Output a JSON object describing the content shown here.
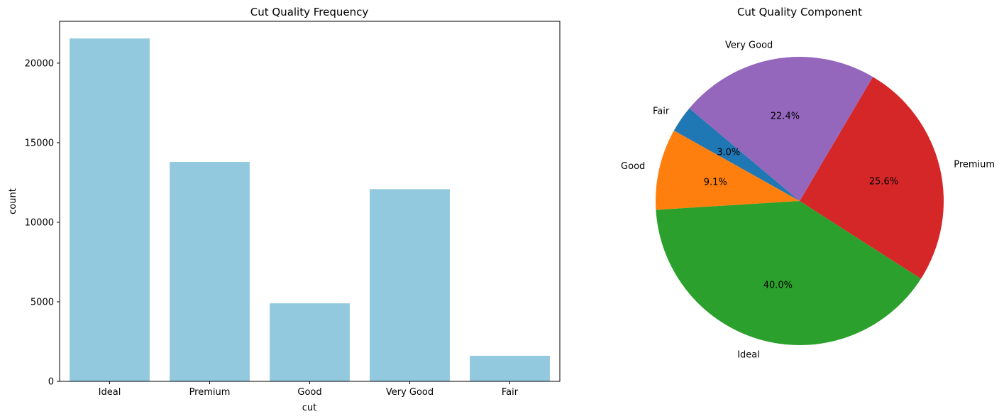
{
  "chart_data": [
    {
      "type": "bar",
      "title": "Cut Quality Frequency",
      "xlabel": "cut",
      "ylabel": "count",
      "categories": [
        "Ideal",
        "Premium",
        "Good",
        "Very Good",
        "Fair"
      ],
      "values": [
        21550,
        13790,
        4905,
        12080,
        1610
      ],
      "ylim": [
        0,
        22630
      ],
      "yticks": [
        0,
        5000,
        10000,
        15000,
        20000
      ],
      "grid": false,
      "bar_color": "#92C9DF"
    },
    {
      "type": "pie",
      "title": "Cut Quality Component",
      "labels": [
        "Fair",
        "Good",
        "Ideal",
        "Premium",
        "Very Good"
      ],
      "values": [
        3.0,
        9.1,
        40.0,
        25.6,
        22.4
      ],
      "pct_labels": [
        "3.0%",
        "9.1%",
        "40.0%",
        "25.6%",
        "22.4%"
      ],
      "colors": [
        "#1F77B4",
        "#FF7F0E",
        "#2CA02C",
        "#D62728",
        "#9467BD"
      ],
      "start_angle_deg": 140
    }
  ]
}
